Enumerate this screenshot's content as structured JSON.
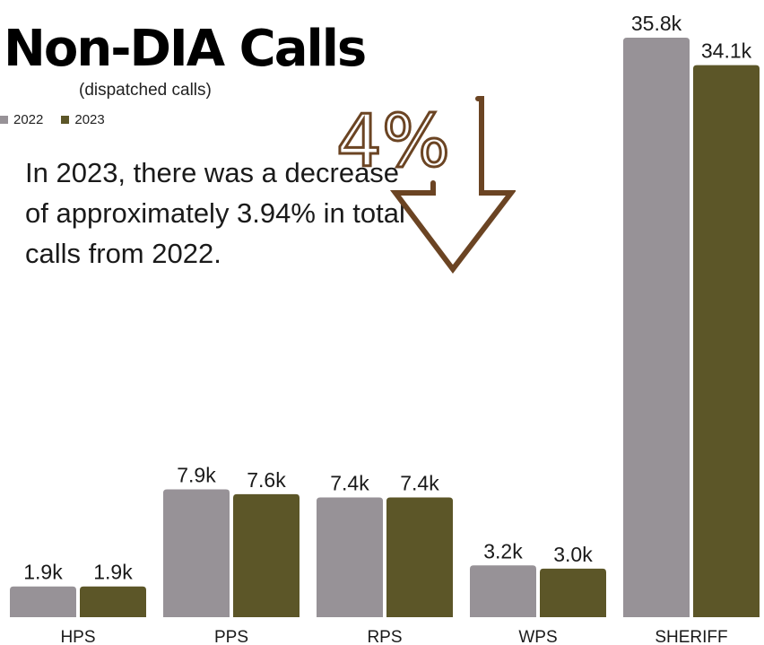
{
  "title": "Non-DIA Calls",
  "subtitle": "(dispatched calls)",
  "annotation": "In 2023, there was a decrease of approximately 3.94% in total calls from 2022.",
  "callout_text": "4%",
  "colors": {
    "series_2022": "#979297",
    "series_2023": "#5c5628",
    "callout": "#6b4423",
    "text": "#1a1a1a"
  },
  "chart_data": {
    "type": "bar",
    "title": "Non-DIA Calls",
    "subtitle": "(dispatched calls)",
    "categories": [
      "HPS",
      "PPS",
      "RPS",
      "WPS",
      "SHERIFF"
    ],
    "series": [
      {
        "name": "2022",
        "values": [
          1.9,
          7.9,
          7.4,
          3.2,
          35.8
        ],
        "labels": [
          "1.9k",
          "7.9k",
          "7.4k",
          "3.2k",
          "35.8k"
        ]
      },
      {
        "name": "2023",
        "values": [
          1.9,
          7.6,
          7.4,
          3.0,
          34.1
        ],
        "labels": [
          "1.9k",
          "7.6k",
          "7.4k",
          "3.0k",
          "34.1k"
        ]
      }
    ],
    "ylim": [
      0,
      36
    ],
    "grid": false,
    "legend_position": "top-left"
  }
}
